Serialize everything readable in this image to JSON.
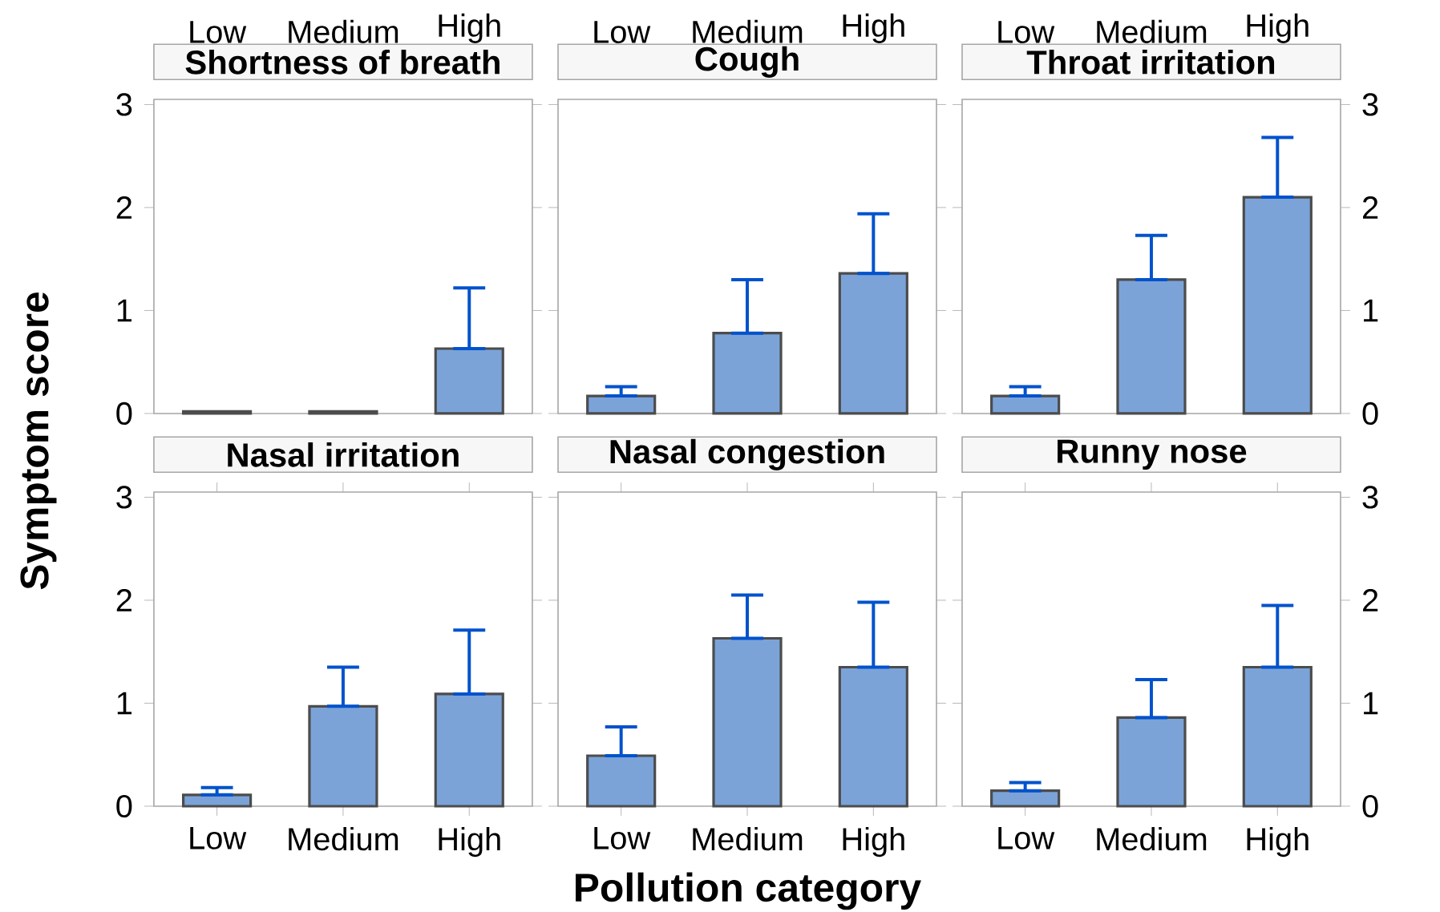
{
  "chart_data": [
    {
      "type": "bar",
      "title": "Shortness of breath",
      "ylabel": "Symptom score",
      "categories": [
        "Low",
        "Medium",
        "High"
      ],
      "values": [
        0.02,
        0.02,
        0.63
      ],
      "errors": [
        null,
        null,
        [
          0.63,
          1.22
        ]
      ],
      "color": "#7ba3d8",
      "ylim": [
        0,
        3.05
      ],
      "yticks": [
        0,
        1,
        2,
        3
      ]
    },
    {
      "type": "bar",
      "title": "Cough",
      "categories": [
        "Low",
        "Medium",
        "High"
      ],
      "values": [
        0.17,
        0.78,
        1.36
      ],
      "errors": [
        [
          0.17,
          0.26
        ],
        [
          0.78,
          1.3
        ],
        [
          1.36,
          1.94
        ]
      ],
      "color": "#7ba3d8",
      "ylim": [
        0,
        3.05
      ],
      "yticks": [
        0,
        1,
        2,
        3
      ],
      "tick_labels": "x"
    },
    {
      "type": "bar",
      "title": "Throat irritation",
      "categories": [
        "Low",
        "Medium",
        "High"
      ],
      "values": [
        0.17,
        1.3,
        2.1
      ],
      "errors": [
        [
          0.17,
          0.26
        ],
        [
          1.3,
          1.73
        ],
        [
          2.1,
          2.68
        ]
      ],
      "color": "#7ba3d8",
      "ylim": [
        0,
        3.05
      ],
      "yticks": [
        0,
        1,
        2,
        3
      ]
    },
    {
      "type": "bar",
      "title": "Nasal irritation",
      "categories": [
        "Low",
        "Medium",
        "High"
      ],
      "values": [
        0.11,
        0.97,
        1.09
      ],
      "errors": [
        [
          0.11,
          0.18
        ],
        [
          0.97,
          1.35
        ],
        [
          1.09,
          1.71
        ]
      ],
      "color": "#7ba3d8",
      "ylim": [
        0,
        3.05
      ],
      "yticks": [
        0,
        1,
        2,
        3
      ]
    },
    {
      "type": "bar",
      "title": "Nasal congestion",
      "xlabel": "Pollution category",
      "categories": [
        "Low",
        "Medium",
        "High"
      ],
      "values": [
        0.49,
        1.63,
        1.35
      ],
      "errors": [
        [
          0.49,
          0.77
        ],
        [
          1.63,
          2.05
        ],
        [
          1.35,
          1.98
        ]
      ],
      "color": "#7ba3d8",
      "ylim": [
        0,
        3.05
      ],
      "yticks": [
        0,
        1,
        2,
        3
      ],
      "tick_labels": "x"
    },
    {
      "type": "bar",
      "title": "Runny nose",
      "categories": [
        "Low",
        "Medium",
        "High"
      ],
      "values": [
        0.15,
        0.86,
        1.35
      ],
      "errors": [
        [
          0.15,
          0.23
        ],
        [
          0.86,
          1.23
        ],
        [
          1.35,
          1.95
        ]
      ],
      "color": "#7ba3d8",
      "ylim": [
        0,
        3.05
      ],
      "yticks": [
        0,
        1,
        2,
        3
      ]
    }
  ]
}
